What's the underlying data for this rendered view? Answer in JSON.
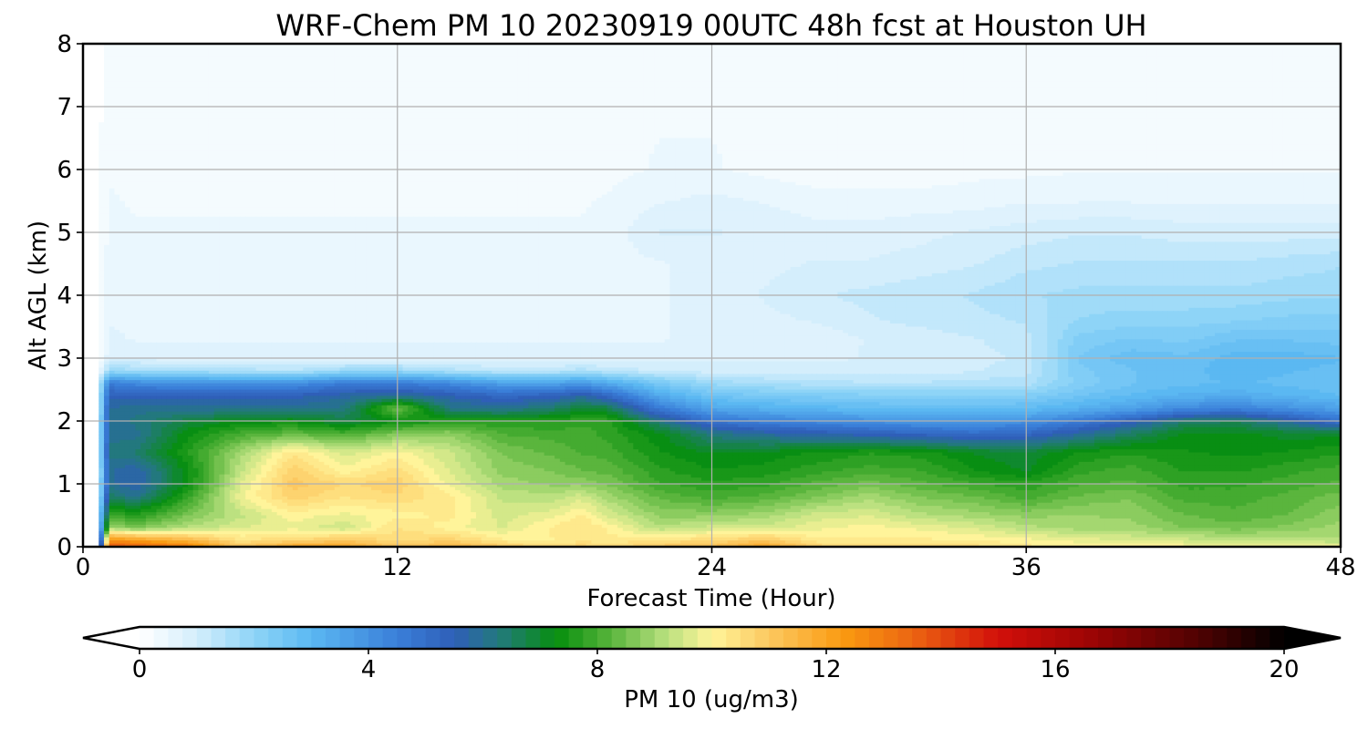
{
  "chart_data": {
    "type": "heatmap",
    "title": "WRF-Chem PM 10  20230919 00UTC 48h fcst at Houston UH",
    "xlabel": "Forecast Time (Hour)",
    "ylabel": "Alt AGL (km)",
    "xlim": [
      0,
      48
    ],
    "ylim": [
      0,
      8
    ],
    "x_ticks": [
      "0",
      "12",
      "24",
      "36",
      "48"
    ],
    "y_ticks": [
      "0",
      "1",
      "2",
      "3",
      "4",
      "5",
      "6",
      "7",
      "8"
    ],
    "grid": true,
    "colorbar": {
      "label": "PM 10  (ug/m3)",
      "range": [
        0,
        20
      ],
      "ticks": [
        "0",
        "4",
        "8",
        "12",
        "16",
        "20"
      ],
      "extend": "both",
      "stops": [
        {
          "v": 0,
          "c": "#ffffff"
        },
        {
          "v": 1,
          "c": "#d4eefc"
        },
        {
          "v": 2,
          "c": "#8ed4f7"
        },
        {
          "v": 3,
          "c": "#5bb8f2"
        },
        {
          "v": 4.5,
          "c": "#3a7fd9"
        },
        {
          "v": 5.5,
          "c": "#2f5fb8"
        },
        {
          "v": 6.3,
          "c": "#227a7a"
        },
        {
          "v": 7.3,
          "c": "#078f0e"
        },
        {
          "v": 8.2,
          "c": "#55b33a"
        },
        {
          "v": 9.2,
          "c": "#b8e07e"
        },
        {
          "v": 10,
          "c": "#fff49a"
        },
        {
          "v": 11,
          "c": "#fcc860"
        },
        {
          "v": 12.3,
          "c": "#fa9a10"
        },
        {
          "v": 13.5,
          "c": "#ec6512"
        },
        {
          "v": 15,
          "c": "#d2100a"
        },
        {
          "v": 16.5,
          "c": "#a10505"
        },
        {
          "v": 18.5,
          "c": "#500202"
        },
        {
          "v": 20,
          "c": "#000000"
        }
      ]
    },
    "x": [
      0,
      0.5,
      1,
      2,
      4,
      6,
      8,
      10,
      12,
      14,
      16,
      18,
      19,
      20,
      22,
      24,
      26,
      28,
      30,
      32,
      34,
      36,
      38,
      40,
      42,
      44,
      46,
      48
    ],
    "y": [
      0,
      0.1,
      0.3,
      0.5,
      0.8,
      1.0,
      1.2,
      1.5,
      1.8,
      2.0,
      2.2,
      2.4,
      2.6,
      2.8,
      3.0,
      3.3,
      3.6,
      4.0,
      4.5,
      5.0,
      5.5,
      6.0,
      7.0,
      8.0
    ],
    "z": [
      [
        0.0,
        0.0,
        14.0,
        13.6,
        13.0,
        11.0,
        12.0,
        12.0,
        11.0,
        11.5,
        11.0,
        10.5,
        10.8,
        10.5,
        11.0,
        11.2,
        12.0,
        10.8,
        10.5,
        10.5,
        10.5,
        10.2,
        10.0,
        10.0,
        10.0,
        9.8,
        9.8,
        9.8
      ],
      [
        0.0,
        0.0,
        12.5,
        12.2,
        11.5,
        10.4,
        10.6,
        11.0,
        10.5,
        10.8,
        10.2,
        10.1,
        10.3,
        10.2,
        10.4,
        10.6,
        11.0,
        10.2,
        10.2,
        10.2,
        10.1,
        10.0,
        9.8,
        9.6,
        9.5,
        9.4,
        9.3,
        9.2
      ],
      [
        0.0,
        0.0,
        9.0,
        8.6,
        9.2,
        9.6,
        9.8,
        9.4,
        10.4,
        10.0,
        9.6,
        10.2,
        10.4,
        10.1,
        9.2,
        9.5,
        9.5,
        9.8,
        10.0,
        9.8,
        9.6,
        9.2,
        9.0,
        9.0,
        8.6,
        8.5,
        8.7,
        9.0
      ],
      [
        0.0,
        0.0,
        8.0,
        7.6,
        8.6,
        9.3,
        10.0,
        9.8,
        10.0,
        10.2,
        9.5,
        9.8,
        10.2,
        9.6,
        8.8,
        8.8,
        9.0,
        9.5,
        9.6,
        9.2,
        9.0,
        8.8,
        8.9,
        8.8,
        8.4,
        8.2,
        8.4,
        8.8
      ],
      [
        0.0,
        0.0,
        6.5,
        6.0,
        7.8,
        9.8,
        10.8,
        10.4,
        10.6,
        10.2,
        9.3,
        9.2,
        9.5,
        9.0,
        8.3,
        8.0,
        8.2,
        8.6,
        9.0,
        8.6,
        8.4,
        8.0,
        8.4,
        8.6,
        8.0,
        8.0,
        8.2,
        8.5
      ],
      [
        0.0,
        0.0,
        6.0,
        5.6,
        7.3,
        9.6,
        11.0,
        10.6,
        10.8,
        9.8,
        9.0,
        8.8,
        8.8,
        8.6,
        7.9,
        7.7,
        7.8,
        8.2,
        8.5,
        8.2,
        7.9,
        7.7,
        8.1,
        8.2,
        7.8,
        7.8,
        8.0,
        8.2
      ],
      [
        0.0,
        0.0,
        5.9,
        5.6,
        7.3,
        9.3,
        10.8,
        10.0,
        10.5,
        9.6,
        8.8,
        8.6,
        8.4,
        8.3,
        7.7,
        7.4,
        7.5,
        7.8,
        8.0,
        7.9,
        7.4,
        7.1,
        7.8,
        8.0,
        7.6,
        7.6,
        7.8,
        8.0
      ],
      [
        0.0,
        0.0,
        6.2,
        6.4,
        7.6,
        9.0,
        10.3,
        9.5,
        10.0,
        9.4,
        8.6,
        8.3,
        8.1,
        8.0,
        7.4,
        7.1,
        7.2,
        7.4,
        7.6,
        7.5,
        7.1,
        6.9,
        7.4,
        7.6,
        7.4,
        7.3,
        7.4,
        7.6
      ],
      [
        0.0,
        0.0,
        6.0,
        6.0,
        7.3,
        8.0,
        8.3,
        8.0,
        8.6,
        8.8,
        8.1,
        8.0,
        8.0,
        7.8,
        7.2,
        6.2,
        5.8,
        5.6,
        5.4,
        5.2,
        5.0,
        5.2,
        5.8,
        6.5,
        7.2,
        7.2,
        7.0,
        7.0
      ],
      [
        0.0,
        0.0,
        6.0,
        6.2,
        6.8,
        7.2,
        7.3,
        6.8,
        7.3,
        7.6,
        7.6,
        7.6,
        7.8,
        7.8,
        6.2,
        4.8,
        4.4,
        4.2,
        4.0,
        3.8,
        3.8,
        4.0,
        4.6,
        5.4,
        6.4,
        6.6,
        5.8,
        4.8
      ],
      [
        0.0,
        0.0,
        5.9,
        6.0,
        6.0,
        6.0,
        6.0,
        6.2,
        8.5,
        6.2,
        6.0,
        6.5,
        7.0,
        6.8,
        4.6,
        3.5,
        3.2,
        3.0,
        2.9,
        2.8,
        2.8,
        2.9,
        3.2,
        3.6,
        4.2,
        4.4,
        4.0,
        3.6
      ],
      [
        0.0,
        0.0,
        5.5,
        5.4,
        5.4,
        5.4,
        5.5,
        5.8,
        6.0,
        5.6,
        5.2,
        5.4,
        5.8,
        5.2,
        3.4,
        2.6,
        2.4,
        2.3,
        2.2,
        2.2,
        2.2,
        2.2,
        2.6,
        2.9,
        3.2,
        3.3,
        3.1,
        2.9
      ],
      [
        0.0,
        0.0,
        4.6,
        4.2,
        4.1,
        4.0,
        4.0,
        4.6,
        4.6,
        4.2,
        3.6,
        3.6,
        3.8,
        3.4,
        2.4,
        1.8,
        1.6,
        1.5,
        1.4,
        1.4,
        1.5,
        1.5,
        2.2,
        2.6,
        2.8,
        2.9,
        2.8,
        2.6
      ],
      [
        0.0,
        0.0,
        1.8,
        1.7,
        1.6,
        1.5,
        1.4,
        1.8,
        1.8,
        1.5,
        1.3,
        1.3,
        1.5,
        1.3,
        1.1,
        1.0,
        1.0,
        1.0,
        1.0,
        1.0,
        1.1,
        1.3,
        2.3,
        2.6,
        2.8,
        3.0,
        2.9,
        2.8
      ],
      [
        0.0,
        0.0,
        0.8,
        0.8,
        0.7,
        0.7,
        0.7,
        0.7,
        0.7,
        0.7,
        0.7,
        0.7,
        0.7,
        0.7,
        0.8,
        0.8,
        0.8,
        0.8,
        0.9,
        0.9,
        1.0,
        1.2,
        2.4,
        2.8,
        2.7,
        3.0,
        3.0,
        2.9
      ],
      [
        0.0,
        0.0,
        0.7,
        0.6,
        0.6,
        0.6,
        0.6,
        0.6,
        0.6,
        0.6,
        0.6,
        0.6,
        0.6,
        0.6,
        0.6,
        0.7,
        0.7,
        0.7,
        0.9,
        1.0,
        1.1,
        1.3,
        2.2,
        2.4,
        2.3,
        2.6,
        2.6,
        2.5
      ],
      [
        0.0,
        0.0,
        0.6,
        0.55,
        0.55,
        0.55,
        0.55,
        0.55,
        0.55,
        0.55,
        0.55,
        0.55,
        0.55,
        0.6,
        0.6,
        0.7,
        0.8,
        0.9,
        1.1,
        1.2,
        1.3,
        1.4,
        1.9,
        2.0,
        2.0,
        2.1,
        2.2,
        2.2
      ],
      [
        0.0,
        0.0,
        0.55,
        0.5,
        0.5,
        0.5,
        0.5,
        0.5,
        0.5,
        0.5,
        0.5,
        0.5,
        0.5,
        0.55,
        0.6,
        0.7,
        0.9,
        1.1,
        1.2,
        1.3,
        1.4,
        1.6,
        1.7,
        1.7,
        1.7,
        1.7,
        1.8,
        1.8
      ],
      [
        0.0,
        0.0,
        0.5,
        0.45,
        0.45,
        0.45,
        0.45,
        0.45,
        0.45,
        0.45,
        0.45,
        0.45,
        0.45,
        0.5,
        0.6,
        0.7,
        0.8,
        0.9,
        0.9,
        1.0,
        1.1,
        1.3,
        1.4,
        1.4,
        1.4,
        1.4,
        1.5,
        1.6
      ],
      [
        0.0,
        0.0,
        0.45,
        0.4,
        0.4,
        0.4,
        0.4,
        0.4,
        0.4,
        0.4,
        0.4,
        0.4,
        0.4,
        0.45,
        0.9,
        0.9,
        0.8,
        0.7,
        0.7,
        0.8,
        0.9,
        1.0,
        1.1,
        1.1,
        1.0,
        1.0,
        1.0,
        1.0
      ],
      [
        0.0,
        0.0,
        0.4,
        0.35,
        0.35,
        0.35,
        0.35,
        0.35,
        0.35,
        0.35,
        0.35,
        0.35,
        0.35,
        0.4,
        0.6,
        0.7,
        0.6,
        0.5,
        0.5,
        0.5,
        0.5,
        0.6,
        0.6,
        0.6,
        0.6,
        0.6,
        0.6,
        0.6
      ],
      [
        0.0,
        0.0,
        0.35,
        0.3,
        0.3,
        0.3,
        0.3,
        0.3,
        0.3,
        0.3,
        0.3,
        0.3,
        0.3,
        0.3,
        0.4,
        0.4,
        0.3,
        0.2,
        0.2,
        0.2,
        0.3,
        0.3,
        0.35,
        0.35,
        0.35,
        0.35,
        0.35,
        0.35
      ],
      [
        0.0,
        0.0,
        0.3,
        0.3,
        0.3,
        0.3,
        0.3,
        0.3,
        0.3,
        0.3,
        0.3,
        0.3,
        0.3,
        0.3,
        0.35,
        0.35,
        0.3,
        0.3,
        0.3,
        0.3,
        0.3,
        0.3,
        0.3,
        0.3,
        0.3,
        0.3,
        0.3,
        0.3
      ],
      [
        0.0,
        0.0,
        0.25,
        0.25,
        0.25,
        0.25,
        0.25,
        0.25,
        0.25,
        0.25,
        0.25,
        0.25,
        0.25,
        0.25,
        0.25,
        0.25,
        0.25,
        0.25,
        0.25,
        0.25,
        0.25,
        0.25,
        0.25,
        0.25,
        0.25,
        0.25,
        0.25,
        0.25
      ]
    ]
  }
}
